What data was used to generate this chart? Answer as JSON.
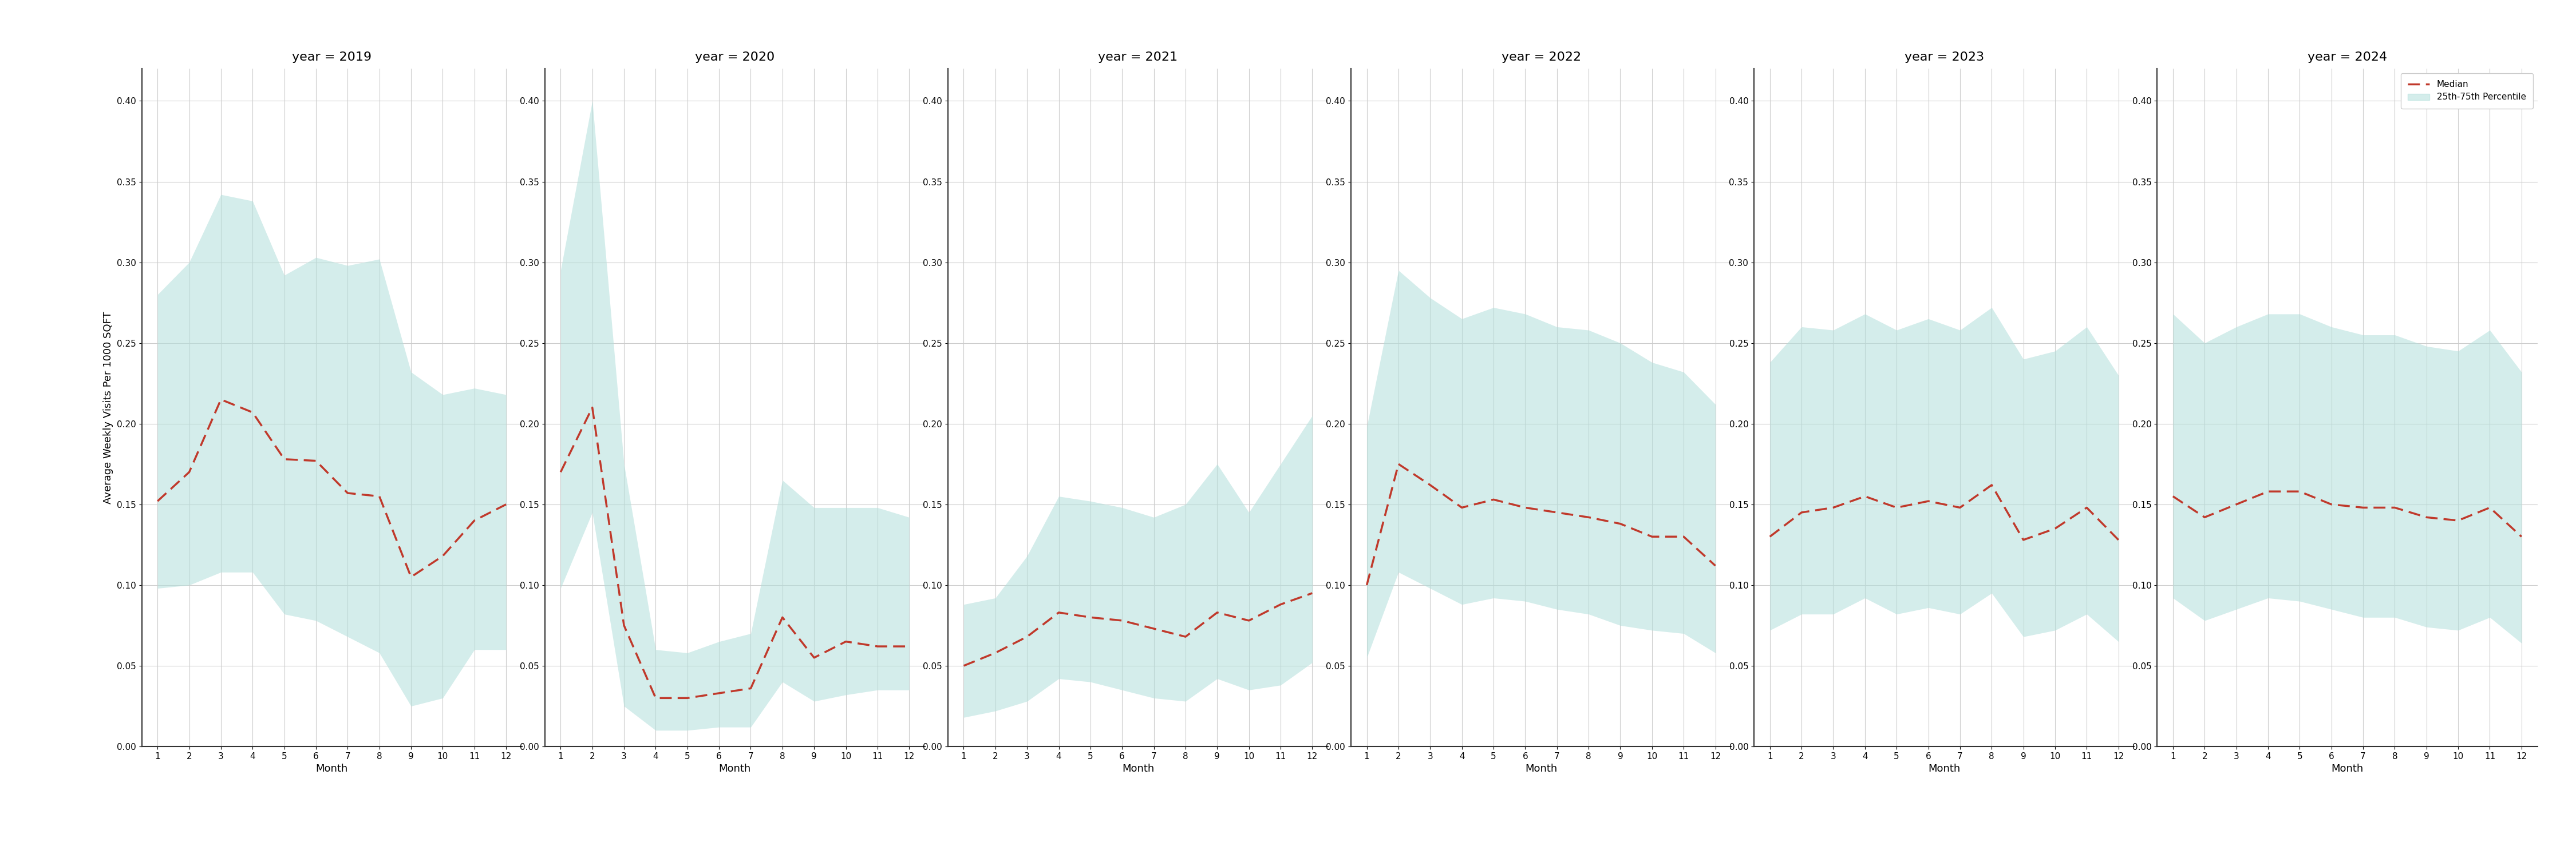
{
  "years": [
    2019,
    2020,
    2021,
    2022,
    2023,
    2024
  ],
  "months": [
    1,
    2,
    3,
    4,
    5,
    6,
    7,
    8,
    9,
    10,
    11,
    12
  ],
  "median": {
    "2019": [
      0.152,
      0.17,
      0.215,
      0.207,
      0.178,
      0.177,
      0.157,
      0.155,
      0.105,
      0.118,
      0.14,
      0.15
    ],
    "2020": [
      0.17,
      0.21,
      0.075,
      0.03,
      0.03,
      0.033,
      0.036,
      0.08,
      0.055,
      0.065,
      0.062,
      0.062
    ],
    "2021": [
      0.05,
      0.058,
      0.068,
      0.083,
      0.08,
      0.078,
      0.073,
      0.068,
      0.083,
      0.078,
      0.088,
      0.095
    ],
    "2022": [
      0.1,
      0.175,
      0.162,
      0.148,
      0.153,
      0.148,
      0.145,
      0.142,
      0.138,
      0.13,
      0.13,
      0.112
    ],
    "2023": [
      0.13,
      0.145,
      0.148,
      0.155,
      0.148,
      0.152,
      0.148,
      0.162,
      0.128,
      0.135,
      0.148,
      0.128
    ],
    "2024": [
      0.155,
      0.142,
      0.15,
      0.158,
      0.158,
      0.15,
      0.148,
      0.148,
      0.142,
      0.14,
      0.148,
      0.13
    ]
  },
  "p25": {
    "2019": [
      0.098,
      0.1,
      0.108,
      0.108,
      0.082,
      0.078,
      0.068,
      0.058,
      0.025,
      0.03,
      0.06,
      0.06
    ],
    "2020": [
      0.098,
      0.145,
      0.025,
      0.01,
      0.01,
      0.012,
      0.012,
      0.04,
      0.028,
      0.032,
      0.035,
      0.035
    ],
    "2021": [
      0.018,
      0.022,
      0.028,
      0.042,
      0.04,
      0.035,
      0.03,
      0.028,
      0.042,
      0.035,
      0.038,
      0.052
    ],
    "2022": [
      0.055,
      0.108,
      0.098,
      0.088,
      0.092,
      0.09,
      0.085,
      0.082,
      0.075,
      0.072,
      0.07,
      0.058
    ],
    "2023": [
      0.072,
      0.082,
      0.082,
      0.092,
      0.082,
      0.086,
      0.082,
      0.095,
      0.068,
      0.072,
      0.082,
      0.065
    ],
    "2024": [
      0.092,
      0.078,
      0.085,
      0.092,
      0.09,
      0.085,
      0.08,
      0.08,
      0.074,
      0.072,
      0.08,
      0.064
    ]
  },
  "p75": {
    "2019": [
      0.28,
      0.3,
      0.342,
      0.338,
      0.292,
      0.303,
      0.298,
      0.302,
      0.232,
      0.218,
      0.222,
      0.218
    ],
    "2020": [
      0.295,
      0.4,
      0.175,
      0.06,
      0.058,
      0.065,
      0.07,
      0.165,
      0.148,
      0.148,
      0.148,
      0.142
    ],
    "2021": [
      0.088,
      0.092,
      0.118,
      0.155,
      0.152,
      0.148,
      0.142,
      0.15,
      0.175,
      0.145,
      0.175,
      0.205
    ],
    "2022": [
      0.198,
      0.295,
      0.278,
      0.265,
      0.272,
      0.268,
      0.26,
      0.258,
      0.25,
      0.238,
      0.232,
      0.212
    ],
    "2023": [
      0.238,
      0.26,
      0.258,
      0.268,
      0.258,
      0.265,
      0.258,
      0.272,
      0.24,
      0.245,
      0.26,
      0.23
    ],
    "2024": [
      0.268,
      0.25,
      0.26,
      0.268,
      0.268,
      0.26,
      0.255,
      0.255,
      0.248,
      0.245,
      0.258,
      0.232
    ]
  },
  "ylim": [
    0.0,
    0.42
  ],
  "yticks": [
    0.0,
    0.05,
    0.1,
    0.15,
    0.2,
    0.25,
    0.3,
    0.35,
    0.4
  ],
  "ylabel": "Average Weekly Visits Per 1000 SQFT",
  "xlabel": "Month",
  "fill_color": "#b2dfdb",
  "fill_alpha": 0.55,
  "line_color": "#c0392b",
  "line_style": "--",
  "line_width": 2.5,
  "background_color": "#ffffff",
  "grid_color": "#cccccc",
  "legend_labels": [
    "Median",
    "25th-75th Percentile"
  ]
}
